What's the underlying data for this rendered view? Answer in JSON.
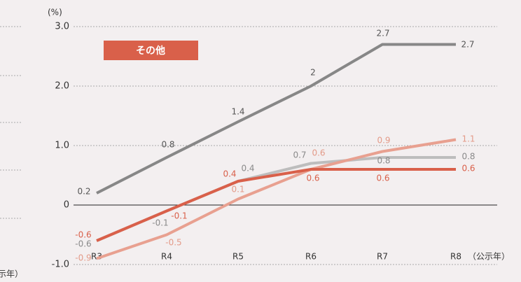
{
  "chart_data": {
    "type": "line",
    "y_unit_label": "(%)",
    "annotation": "その他",
    "x_axis_label": "（公示年）",
    "left_cropped_label": "（公示年）",
    "categories": [
      "R3",
      "R4",
      "R5",
      "R6",
      "R7",
      "R8"
    ],
    "series": [
      {
        "color": "#878787",
        "label_color": "#555555",
        "values": [
          0.2,
          0.8,
          1.4,
          2.0,
          2.7,
          2.7
        ]
      },
      {
        "color": "#bdbdbd",
        "label_color": "#8a8a8a",
        "values": [
          -0.6,
          -0.1,
          0.4,
          0.7,
          0.8,
          0.8
        ]
      },
      {
        "color": "#d9604a",
        "label_color": "#d9604a",
        "values": [
          -0.6,
          -0.1,
          0.4,
          0.6,
          0.6,
          0.6
        ]
      },
      {
        "color": "#e8a090",
        "label_color": "#e39a88",
        "values": [
          -0.9,
          -0.5,
          0.1,
          0.6,
          0.9,
          1.1
        ]
      }
    ],
    "ylim": [
      -1,
      3
    ],
    "yticks": [
      {
        "value": -1,
        "label": "-1.0"
      },
      0,
      {
        "value": 1,
        "label": "1.0"
      },
      {
        "value": 2,
        "label": "2.0"
      },
      {
        "value": 3,
        "label": "3.0"
      }
    ],
    "grid": true
  }
}
